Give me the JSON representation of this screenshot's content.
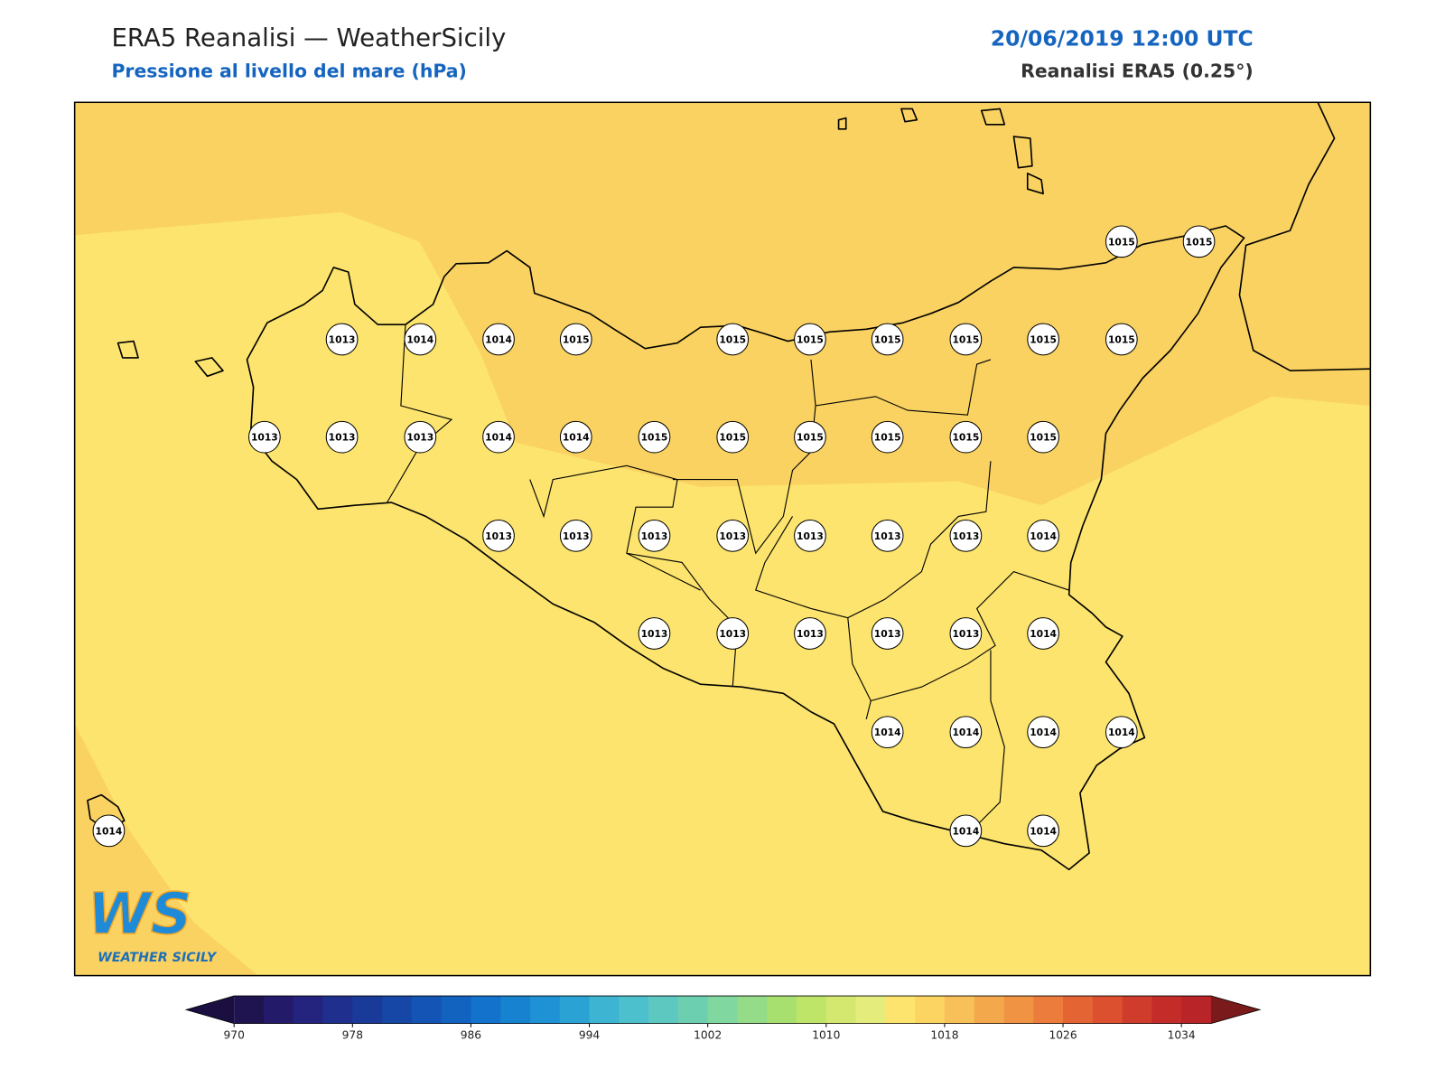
{
  "header": {
    "title": "ERA5 Reanalisi — WeatherSicily",
    "subtitle": "Pressione al livello del mare (hPa)",
    "date": "20/06/2019 12:00 UTC",
    "model": "Reanalisi ERA5 (0.25°)"
  },
  "stations": [
    1015,
    1015,
    1013,
    1014,
    1014,
    1015,
    1015,
    1015,
    1015,
    1015,
    1015,
    1015,
    1013,
    1013,
    1013,
    1014,
    1014,
    1015,
    1015,
    1015,
    1015,
    1015,
    1015,
    1013,
    1013,
    1013,
    1013,
    1013,
    1013,
    1013,
    1014,
    1013,
    1013,
    1013,
    1013,
    1013,
    1014,
    1014,
    1014,
    1014,
    1014,
    1014,
    1014,
    1014
  ],
  "colorbar": {
    "ticks": [
      970,
      978,
      986,
      994,
      1002,
      1010,
      1018,
      1026,
      1034
    ],
    "colors": [
      "#1f1450",
      "#241a6a",
      "#24237e",
      "#1f2f8e",
      "#1a3a9a",
      "#1646a6",
      "#1454b4",
      "#1262c0",
      "#1272cc",
      "#1682d0",
      "#1e92d4",
      "#2aa2d4",
      "#3cb4d2",
      "#4cc0cc",
      "#5cc8c0",
      "#6cd0b0",
      "#80d8a0",
      "#94dc88",
      "#a8e070",
      "#bee468",
      "#d4e870",
      "#e4ec7c",
      "#fce46e",
      "#fcd462",
      "#f8c058",
      "#f4a84c",
      "#f09444",
      "#ec7c3c",
      "#e46434",
      "#dc5030",
      "#d03c2c",
      "#c42c2a",
      "#b82428"
    ],
    "under": "#1a0f40",
    "over": "#7a1a1a"
  },
  "logo": {
    "mark": "WS",
    "text": "WEATHER SICILY"
  }
}
